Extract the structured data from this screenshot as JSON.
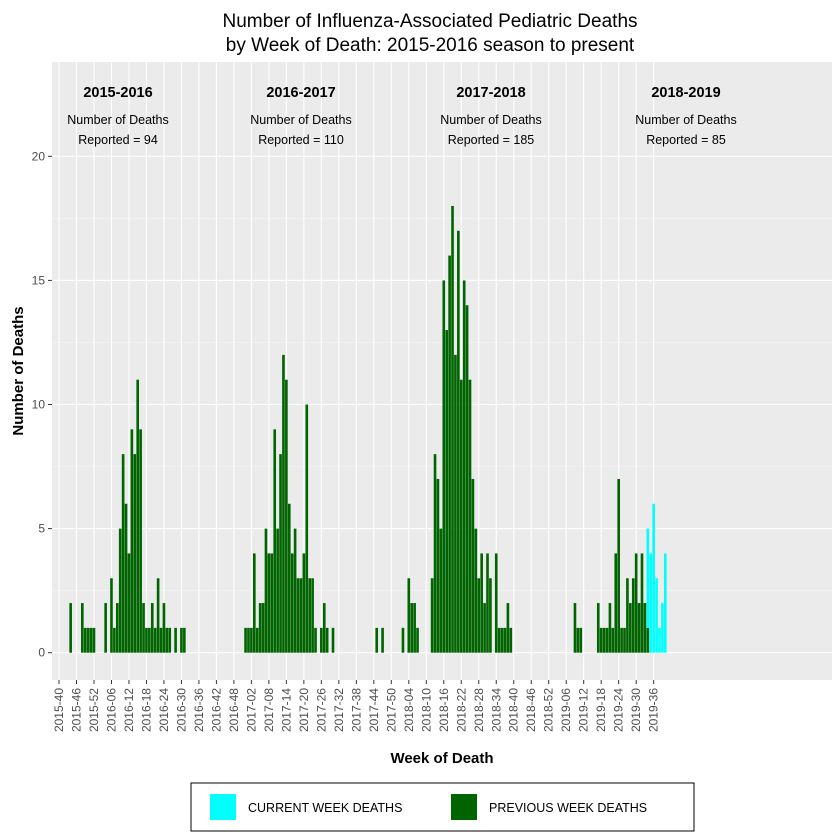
{
  "chart_data": {
    "type": "bar",
    "title_lines": [
      "Number of Influenza-Associated Pediatric Deaths",
      "by Week of Death: 2015-2016 season to present"
    ],
    "xlabel": "Week of Death",
    "ylabel": "Number of Deaths",
    "ylim": [
      -1.1,
      23.8
    ],
    "yticks": [
      0,
      5,
      10,
      15,
      20
    ],
    "grid": true,
    "xticks": [
      "2015-40",
      "2015-46",
      "2015-52",
      "2016-06",
      "2016-12",
      "2016-18",
      "2016-24",
      "2016-30",
      "2016-36",
      "2016-42",
      "2016-48",
      "2017-02",
      "2017-08",
      "2017-14",
      "2017-20",
      "2017-26",
      "2017-32",
      "2017-38",
      "2017-44",
      "2017-50",
      "2018-04",
      "2018-10",
      "2018-16",
      "2018-22",
      "2018-28",
      "2018-34",
      "2018-40",
      "2018-46",
      "2018-52",
      "2019-06",
      "2019-12",
      "2019-18",
      "2019-24",
      "2019-30",
      "2019-36"
    ],
    "series": [
      {
        "name": "PREVIOUS WEEK DEATHS",
        "color": "#006400",
        "values": [
          0,
          0,
          0,
          0,
          2,
          0,
          0,
          0,
          2,
          1,
          1,
          1,
          1,
          0,
          0,
          0,
          2,
          0,
          3,
          1,
          2,
          5,
          8,
          6,
          4,
          9,
          8,
          11,
          9,
          2,
          1,
          1,
          2,
          1,
          3,
          1,
          2,
          1,
          1,
          0,
          1,
          0,
          1,
          1,
          0,
          0,
          0,
          0,
          0,
          0,
          0,
          0,
          0,
          0,
          0,
          0,
          0,
          0,
          0,
          0,
          0,
          0,
          0,
          0,
          1,
          1,
          1,
          4,
          1,
          2,
          2,
          5,
          4,
          4,
          9,
          5,
          8,
          12,
          11,
          6,
          4,
          5,
          3,
          3,
          4,
          10,
          3,
          3,
          1,
          0,
          1,
          2,
          1,
          0,
          1,
          0,
          0,
          0,
          0,
          0,
          0,
          0,
          0,
          0,
          0,
          0,
          0,
          0,
          0,
          1,
          0,
          1,
          0,
          0,
          0,
          0,
          0,
          0,
          1,
          0,
          3,
          2,
          2,
          1,
          0,
          0,
          0,
          0,
          3,
          8,
          7,
          5,
          15,
          13,
          16,
          18,
          12,
          17,
          11,
          15,
          14,
          11,
          7,
          5,
          3,
          4,
          2,
          4,
          3,
          0,
          4,
          1,
          1,
          1,
          2,
          1,
          0,
          0,
          0,
          0,
          0,
          0,
          0,
          0,
          0,
          0,
          0,
          0,
          0,
          0,
          0,
          0,
          0,
          0,
          0,
          0,
          0,
          2,
          1,
          1,
          0,
          0,
          0,
          0,
          0,
          2,
          1,
          1,
          1,
          2,
          1,
          4,
          7,
          1,
          1,
          3,
          2,
          3,
          4,
          2,
          4,
          2,
          1,
          0,
          0,
          0,
          0,
          0,
          0,
          0,
          0,
          0,
          0,
          0,
          0,
          0,
          0,
          0,
          0,
          0,
          0,
          0,
          0,
          0,
          0,
          0,
          0,
          0,
          0,
          0,
          0,
          0,
          0,
          0,
          0,
          0,
          0,
          0,
          0,
          0,
          0,
          0,
          0,
          0,
          0,
          0,
          0,
          0,
          0,
          0,
          0,
          0,
          0,
          0,
          0,
          0,
          0,
          0
        ]
      },
      {
        "name": "CURRENT WEEK DEATHS",
        "color": "#00ffff",
        "values": [
          0,
          0,
          0,
          0,
          0,
          0,
          0,
          0,
          0,
          0,
          0,
          0,
          0,
          0,
          0,
          0,
          0,
          0,
          0,
          0,
          0,
          0,
          0,
          0,
          0,
          0,
          0,
          0,
          0,
          0,
          0,
          0,
          0,
          0,
          0,
          0,
          0,
          0,
          0,
          0,
          0,
          0,
          0,
          0,
          0,
          0,
          0,
          0,
          0,
          0,
          0,
          0,
          0,
          0,
          0,
          0,
          0,
          0,
          0,
          0,
          0,
          0,
          0,
          0,
          0,
          0,
          0,
          0,
          0,
          0,
          0,
          0,
          0,
          0,
          0,
          0,
          0,
          0,
          0,
          0,
          0,
          0,
          0,
          0,
          0,
          0,
          0,
          0,
          0,
          0,
          0,
          0,
          0,
          0,
          0,
          0,
          0,
          0,
          0,
          0,
          0,
          0,
          0,
          0,
          0,
          0,
          0,
          0,
          0,
          0,
          0,
          0,
          0,
          0,
          0,
          0,
          0,
          0,
          0,
          0,
          0,
          0,
          0,
          0,
          0,
          0,
          0,
          0,
          0,
          0,
          0,
          0,
          0,
          0,
          0,
          0,
          0,
          0,
          0,
          0,
          0,
          0,
          0,
          0,
          0,
          0,
          0,
          0,
          0,
          0,
          0,
          0,
          0,
          0,
          0,
          0,
          0,
          0,
          0,
          0,
          0,
          0,
          0,
          0,
          0,
          0,
          0,
          0,
          0,
          0,
          0,
          0,
          0,
          0,
          0,
          0,
          0,
          0,
          0,
          0,
          0,
          0,
          0,
          0,
          0,
          0,
          0,
          0,
          0,
          0,
          0,
          0,
          0,
          0,
          0,
          0,
          0,
          0,
          0,
          0,
          0,
          0,
          4,
          4,
          6,
          3,
          1,
          2,
          4,
          0,
          0,
          0,
          0,
          0,
          0,
          0,
          0,
          0,
          0,
          0,
          0,
          0,
          0,
          0,
          0,
          0,
          0,
          0,
          0,
          0,
          0,
          0,
          0,
          0,
          0,
          0,
          0,
          0,
          0,
          0,
          0,
          0,
          0,
          0,
          0,
          0,
          0,
          0,
          0,
          0,
          0,
          0,
          0,
          0,
          0,
          0,
          0,
          0,
          0,
          0,
          0,
          0,
          0,
          0,
          0,
          0,
          0,
          0,
          0,
          0,
          0,
          0,
          0
        ]
      }
    ],
    "seasons": [
      {
        "label": "2015-2016",
        "line1": "Number of Deaths",
        "line2": "Reported = 94"
      },
      {
        "label": "2016-2017",
        "line1": "Number of Deaths",
        "line2": "Reported = 110"
      },
      {
        "label": "2017-2018",
        "line1": "Number of Deaths",
        "line2": "Reported = 185"
      },
      {
        "label": "2018-2019",
        "line1": "Number of Deaths",
        "line2": "Reported = 85"
      }
    ],
    "legend": {
      "placement": "bottom",
      "items": [
        {
          "label": "CURRENT WEEK DEATHS",
          "color": "#00ffff"
        },
        {
          "label": "PREVIOUS WEEK DEATHS",
          "color": "#006400"
        }
      ]
    }
  }
}
